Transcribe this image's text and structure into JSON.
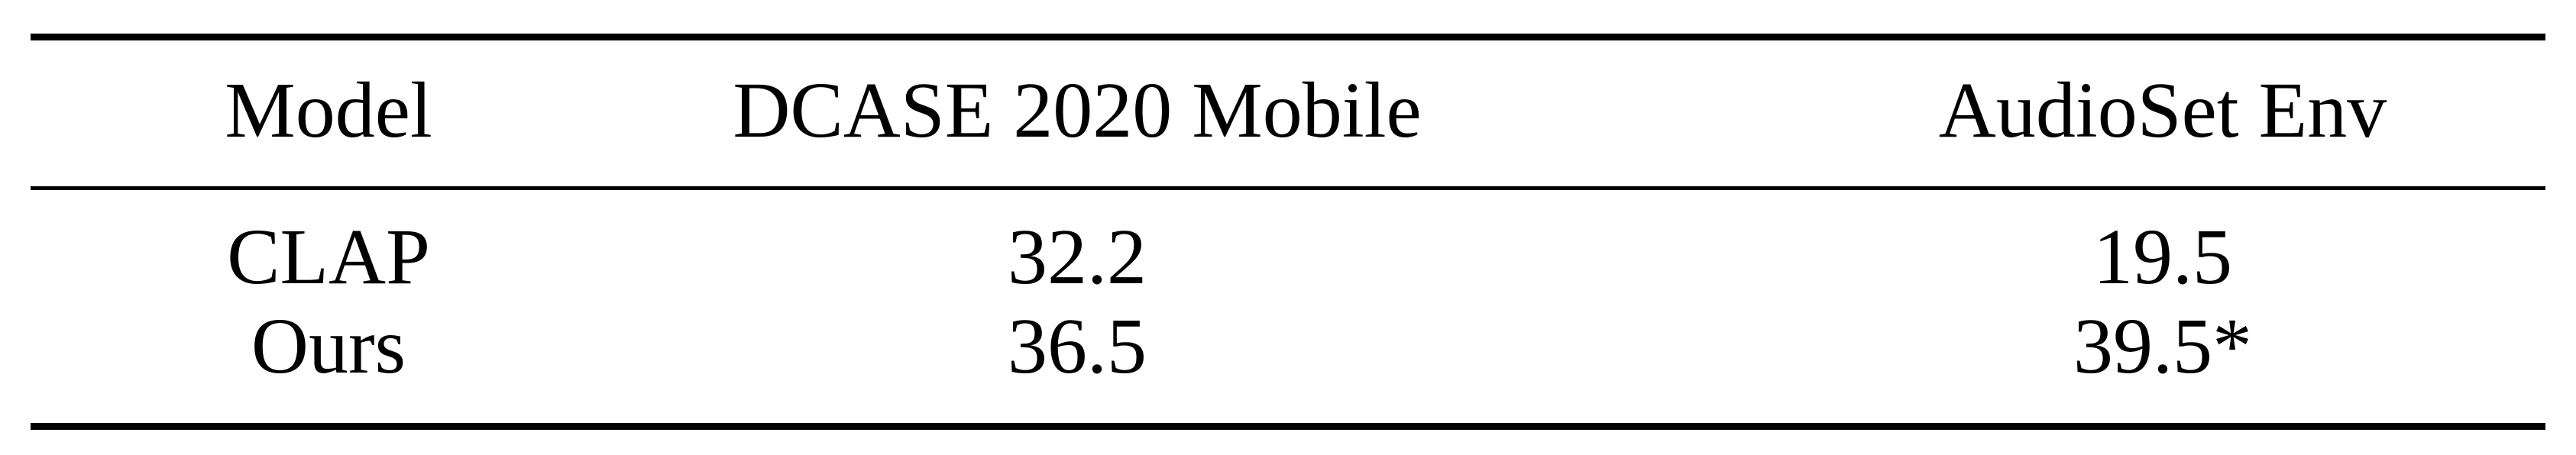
{
  "table": {
    "headers": [
      "Model",
      "DCASE 2020 Mobile",
      "AudioSet Env"
    ],
    "rows": [
      [
        "CLAP",
        "32.2",
        "19.5"
      ],
      [
        "Ours",
        "36.5",
        "39.5*"
      ]
    ]
  }
}
